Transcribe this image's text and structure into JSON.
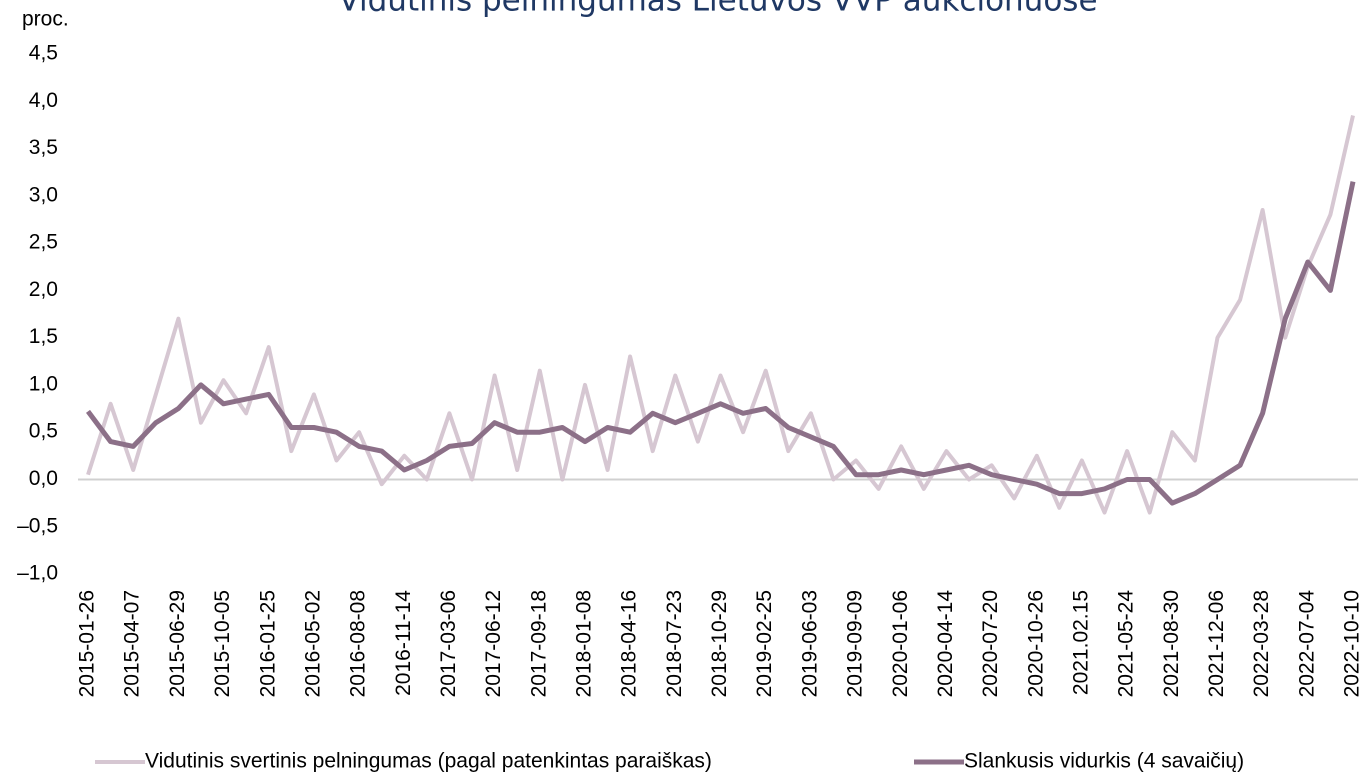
{
  "chart_data": {
    "type": "line",
    "title": "Vidutinis pelningumas Lietuvos VVP aukcionuose",
    "y_label": "proc.",
    "categories": [
      "2015-01-26",
      null,
      "2015-04-07",
      null,
      "2015-06-29",
      null,
      "2015-10-05",
      null,
      "2016-01-25",
      null,
      "2016-05-02",
      null,
      "2016-08-08",
      null,
      "2016-11-14",
      null,
      "2017-03-06",
      null,
      "2017-06-12",
      null,
      "2017-09-18",
      null,
      "2018-01-08",
      null,
      "2018-04-16",
      null,
      "2018-07-23",
      null,
      "2018-10-29",
      null,
      "2019-02-25",
      null,
      "2019-06-03",
      null,
      "2019-09-09",
      null,
      "2020-01-06",
      null,
      "2020-04-14",
      null,
      "2020-07-20",
      null,
      "2020-10-26",
      null,
      "2021.02.15",
      null,
      "2021-05-24",
      null,
      "2021-08-30",
      null,
      "2021-12-06",
      null,
      "2022-03-28",
      null,
      "2022-07-04",
      null,
      "2022-10-10"
    ],
    "series": [
      {
        "name": "Vidutinis svertinis pelningumas (pagal patenkintas paraiškas)",
        "color": "#d6c7d2",
        "values": [
          0.05,
          0.8,
          0.1,
          0.9,
          1.7,
          0.6,
          1.05,
          0.7,
          1.4,
          0.3,
          0.9,
          0.2,
          0.5,
          -0.05,
          0.25,
          0.0,
          0.7,
          0.0,
          1.1,
          0.1,
          1.15,
          0.0,
          1.0,
          0.1,
          1.3,
          0.3,
          1.1,
          0.4,
          1.1,
          0.5,
          1.15,
          0.3,
          0.7,
          0.0,
          0.2,
          -0.1,
          0.35,
          -0.1,
          0.3,
          0.0,
          0.15,
          -0.2,
          0.25,
          -0.3,
          0.2,
          -0.35,
          0.3,
          -0.35,
          0.5,
          0.2,
          1.5,
          1.9,
          2.85,
          1.5,
          2.25,
          2.8,
          3.85
        ]
      },
      {
        "name": "Slankusis vidurkis (4 savaičių)",
        "color": "#8c7088",
        "values": [
          0.72,
          0.4,
          0.35,
          0.6,
          0.75,
          1.0,
          0.8,
          0.85,
          0.9,
          0.55,
          0.55,
          0.5,
          0.35,
          0.3,
          0.1,
          0.2,
          0.35,
          0.38,
          0.6,
          0.5,
          0.5,
          0.55,
          0.4,
          0.55,
          0.5,
          0.7,
          0.6,
          0.7,
          0.8,
          0.7,
          0.75,
          0.55,
          0.45,
          0.35,
          0.05,
          0.05,
          0.1,
          0.05,
          0.1,
          0.15,
          0.05,
          0.0,
          -0.05,
          -0.15,
          -0.15,
          -0.1,
          0.0,
          0.0,
          -0.25,
          -0.15,
          0.0,
          0.15,
          0.7,
          1.7,
          2.3,
          2.0,
          3.15
        ]
      }
    ],
    "ylim": [
      -1,
      4.5
    ],
    "yticks": [
      {
        "value": -1,
        "label": "–1,0"
      },
      {
        "value": -0.5,
        "label": "–0,5"
      },
      {
        "value": 0,
        "label": "0,0"
      },
      {
        "value": 0.5,
        "label": "0,5"
      },
      {
        "value": 1,
        "label": "1,0"
      },
      {
        "value": 1.5,
        "label": "1,5"
      },
      {
        "value": 2,
        "label": "2,0"
      },
      {
        "value": 2.5,
        "label": "2,5"
      },
      {
        "value": 3,
        "label": "3,0"
      },
      {
        "value": 3.5,
        "label": "3,5"
      },
      {
        "value": 4,
        "label": "4,0"
      },
      {
        "value": 4.5,
        "label": "4,5"
      }
    ],
    "legend": "bottom"
  }
}
